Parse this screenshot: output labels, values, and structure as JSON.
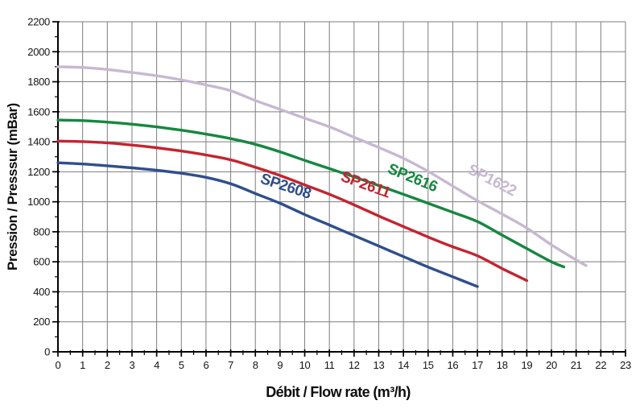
{
  "page": {
    "background": "#ffffff"
  },
  "chart_data": {
    "type": "line",
    "title": "",
    "xlabel": "Débit / Flow rate (m³/h)",
    "ylabel": "Pression / Presssur (mBar)",
    "xlim": [
      0,
      23
    ],
    "ylim": [
      0,
      2200
    ],
    "x_tick_step": 1,
    "x_minor_tick_step": 0.5,
    "y_tick_step": 200,
    "y_minor_tick_step": 100,
    "grid": true,
    "legend_position": "inline-curve-labels",
    "colors": {
      "grid": "#7d7d7d",
      "axis": "#000000",
      "tick_label": "#141414"
    },
    "series": [
      {
        "name": "SP2608",
        "color": "#2f4f8c",
        "label_anchor": [
          9.17,
          1073
        ],
        "label_angle": 18,
        "points": [
          [
            0,
            1260
          ],
          [
            1,
            1252
          ],
          [
            2,
            1240
          ],
          [
            3,
            1226
          ],
          [
            4,
            1210
          ],
          [
            5,
            1190
          ],
          [
            6,
            1163
          ],
          [
            7,
            1120
          ],
          [
            8,
            1055
          ],
          [
            9,
            990
          ],
          [
            10,
            915
          ],
          [
            11,
            845
          ],
          [
            12,
            775
          ],
          [
            13,
            705
          ],
          [
            14,
            635
          ],
          [
            15,
            565
          ],
          [
            16,
            500
          ],
          [
            17,
            435
          ]
        ]
      },
      {
        "name": "SP2611",
        "color": "#c42430",
        "label_anchor": [
          12.4,
          1084
        ],
        "label_angle": 20,
        "points": [
          [
            0,
            1405
          ],
          [
            1,
            1401
          ],
          [
            2,
            1393
          ],
          [
            3,
            1378
          ],
          [
            4,
            1360
          ],
          [
            5,
            1338
          ],
          [
            6,
            1312
          ],
          [
            7,
            1280
          ],
          [
            8,
            1230
          ],
          [
            9,
            1175
          ],
          [
            10,
            1113
          ],
          [
            11,
            1050
          ],
          [
            12,
            980
          ],
          [
            13,
            905
          ],
          [
            14,
            835
          ],
          [
            15,
            765
          ],
          [
            16,
            700
          ],
          [
            17,
            640
          ],
          [
            18,
            555
          ],
          [
            19,
            475
          ]
        ]
      },
      {
        "name": "SP2616",
        "color": "#168740",
        "label_anchor": [
          14.3,
          1130
        ],
        "label_angle": 22,
        "points": [
          [
            0,
            1545
          ],
          [
            1,
            1541
          ],
          [
            2,
            1531
          ],
          [
            3,
            1517
          ],
          [
            4,
            1499
          ],
          [
            5,
            1477
          ],
          [
            6,
            1451
          ],
          [
            7,
            1421
          ],
          [
            8,
            1383
          ],
          [
            9,
            1333
          ],
          [
            10,
            1276
          ],
          [
            11,
            1221
          ],
          [
            12,
            1166
          ],
          [
            13,
            1108
          ],
          [
            14,
            1050
          ],
          [
            15,
            990
          ],
          [
            16,
            930
          ],
          [
            17,
            868
          ],
          [
            18,
            778
          ],
          [
            19,
            688
          ],
          [
            20,
            600
          ],
          [
            20.5,
            566
          ]
        ]
      },
      {
        "name": "SP1622",
        "color": "#c7b8d2",
        "label_anchor": [
          17.5,
          1116
        ],
        "label_angle": 27,
        "points": [
          [
            0,
            1900
          ],
          [
            1,
            1895
          ],
          [
            2,
            1882
          ],
          [
            3,
            1862
          ],
          [
            4,
            1840
          ],
          [
            5,
            1812
          ],
          [
            6,
            1779
          ],
          [
            7,
            1740
          ],
          [
            8,
            1675
          ],
          [
            9,
            1616
          ],
          [
            10,
            1557
          ],
          [
            11,
            1500
          ],
          [
            12,
            1430
          ],
          [
            13,
            1362
          ],
          [
            14,
            1290
          ],
          [
            15,
            1203
          ],
          [
            16,
            1105
          ],
          [
            17,
            1007
          ],
          [
            18,
            918
          ],
          [
            19,
            825
          ],
          [
            20,
            713
          ],
          [
            21,
            612
          ],
          [
            21.4,
            575
          ]
        ]
      }
    ]
  }
}
